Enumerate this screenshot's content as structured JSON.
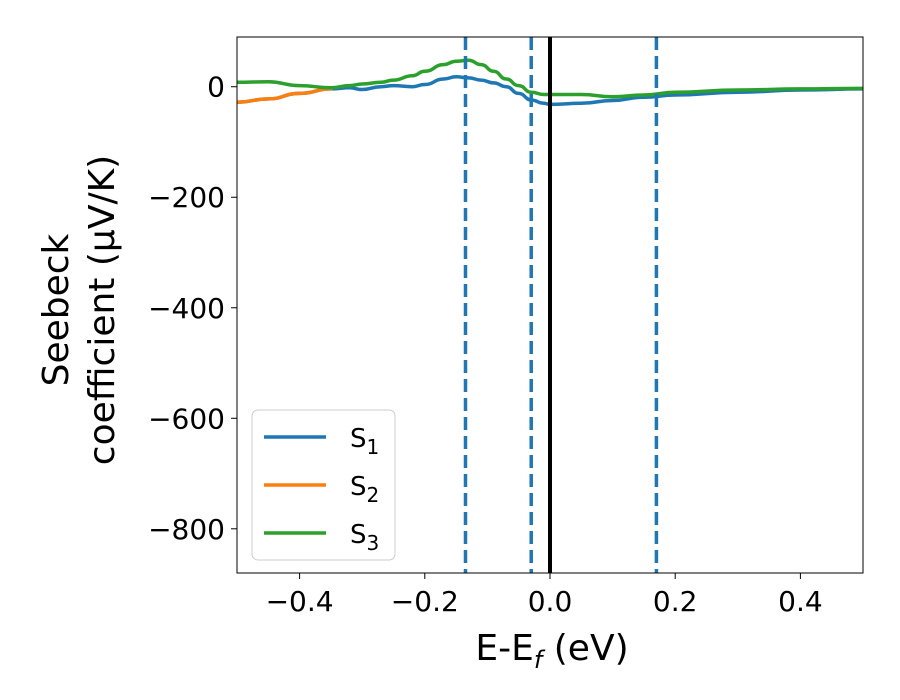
{
  "chart_data": {
    "type": "line",
    "xlabel_main": "E-E",
    "xlabel_sub": "f",
    "xlabel_unit": " (eV)",
    "ylabel_line1": "Seebeck",
    "ylabel_line2": "coefficient  (μV/K)",
    "xlim": [
      -0.5,
      0.5
    ],
    "ylim": [
      -880,
      90
    ],
    "x_ticks": [
      -0.4,
      -0.2,
      0.0,
      0.2,
      0.4
    ],
    "x_tick_labels": [
      "−0.4",
      "−0.2",
      "0.0",
      "0.2",
      "0.4"
    ],
    "y_ticks": [
      0,
      -200,
      -400,
      -600,
      -800
    ],
    "y_tick_labels": [
      "0",
      "−200",
      "−400",
      "−600",
      "−800"
    ],
    "grid": false,
    "legend_position": "lower-left",
    "series": [
      {
        "name": "S",
        "name_sub": "1",
        "color": "#1f77b4",
        "x": [
          -0.5,
          -0.45,
          -0.4,
          -0.35,
          -0.32,
          -0.3,
          -0.27,
          -0.25,
          -0.22,
          -0.2,
          -0.17,
          -0.15,
          -0.13,
          -0.11,
          -0.09,
          -0.07,
          -0.05,
          -0.03,
          -0.01,
          0.0,
          0.05,
          0.1,
          0.15,
          0.2,
          0.3,
          0.4,
          0.5
        ],
        "y": [
          -28,
          -22,
          -12,
          -4,
          -2,
          -5,
          0,
          2,
          0,
          4,
          14,
          18,
          16,
          12,
          7,
          0,
          -12,
          -24,
          -30,
          -32,
          -30,
          -25,
          -19,
          -15,
          -10,
          -6,
          -4
        ]
      },
      {
        "name": "S",
        "name_sub": "2",
        "color": "#ff7f0e",
        "x": [
          -0.5,
          -0.45,
          -0.4,
          -0.35
        ],
        "y": [
          -28,
          -22,
          -12,
          -4
        ]
      },
      {
        "name": "S",
        "name_sub": "3",
        "color": "#2ca02c",
        "x": [
          -0.5,
          -0.45,
          -0.4,
          -0.35,
          -0.32,
          -0.3,
          -0.27,
          -0.25,
          -0.22,
          -0.2,
          -0.17,
          -0.15,
          -0.13,
          -0.11,
          -0.09,
          -0.07,
          -0.05,
          -0.03,
          -0.01,
          0.0,
          0.05,
          0.1,
          0.15,
          0.2,
          0.3,
          0.4,
          0.5
        ],
        "y": [
          8,
          9,
          2,
          -2,
          2,
          5,
          8,
          12,
          20,
          28,
          40,
          46,
          48,
          40,
          28,
          14,
          2,
          -10,
          -14,
          -14,
          -14,
          -18,
          -15,
          -10,
          -6,
          -4,
          -3
        ]
      }
    ],
    "vlines": [
      {
        "x": -0.135,
        "style": "dashed",
        "color": "#1f77b4"
      },
      {
        "x": -0.03,
        "style": "dashed",
        "color": "#1f77b4"
      },
      {
        "x": 0.0,
        "style": "solid",
        "color": "#000000"
      },
      {
        "x": 0.17,
        "style": "dashed",
        "color": "#1f77b4"
      }
    ]
  }
}
